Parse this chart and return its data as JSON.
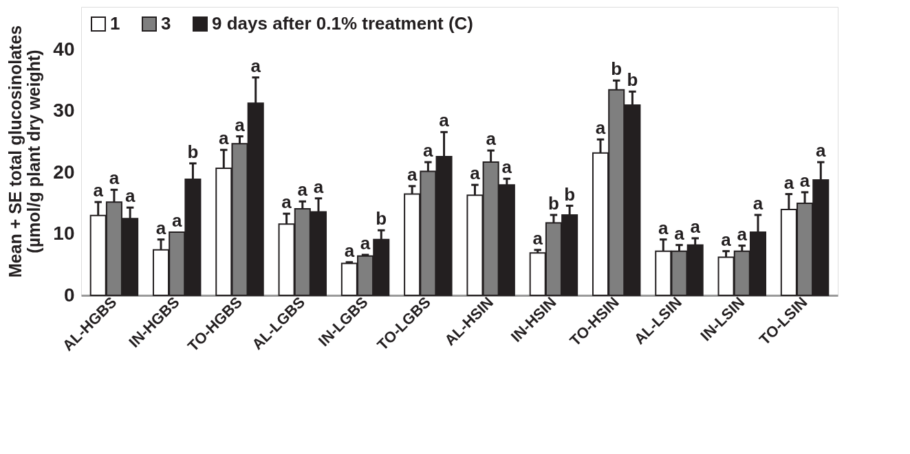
{
  "chart_data": {
    "type": "bar",
    "ylabel": "Mean + SE total glucosinolates\n(µmol/g  plant dry weight)",
    "categories": [
      "AL-HGBS",
      "IN-HGBS",
      "TO-HGBS",
      "AL-LGBS",
      "IN-LGBS",
      "TO-LGBS",
      "AL-HSIN",
      "IN-HSIN",
      "TO-HSIN",
      "AL-LSIN",
      "IN-LSIN",
      "TO-LSIN"
    ],
    "series": [
      {
        "name": "1",
        "color": "#ffffff",
        "values": [
          13.0,
          7.4,
          20.7,
          11.6,
          5.2,
          16.5,
          16.3,
          6.9,
          23.2,
          7.2,
          6.2,
          14.0
        ],
        "errors": [
          [
            13.0,
            15.2
          ],
          [
            7.4,
            9.1
          ],
          [
            20.7,
            23.7
          ],
          [
            11.6,
            13.3
          ],
          [
            5.2,
            5.4
          ],
          [
            16.5,
            17.8
          ],
          [
            16.3,
            18.0
          ],
          [
            6.9,
            7.4
          ],
          [
            23.2,
            25.4
          ],
          [
            7.2,
            9.1
          ],
          [
            6.2,
            7.2
          ],
          [
            14.0,
            16.5
          ]
        ],
        "value_labels": [
          "a",
          "a",
          "a",
          "a",
          "a",
          "a",
          "a",
          "a",
          "a",
          "a",
          "a",
          "a"
        ]
      },
      {
        "name": "3",
        "color": "#7f7f7f",
        "values": [
          15.2,
          10.3,
          24.7,
          14.1,
          6.4,
          20.2,
          21.7,
          11.8,
          33.5,
          7.2,
          7.2,
          15.0
        ],
        "errors": [
          [
            15.2,
            17.2
          ],
          null,
          [
            24.7,
            25.9
          ],
          [
            14.1,
            15.3
          ],
          [
            6.4,
            6.6
          ],
          [
            20.2,
            21.7
          ],
          [
            21.7,
            23.6
          ],
          [
            11.8,
            13.1
          ],
          [
            33.5,
            35.0
          ],
          [
            7.2,
            8.2
          ],
          [
            7.2,
            8.1
          ],
          [
            15.0,
            16.8
          ]
        ],
        "value_labels": [
          "a",
          "a",
          "a",
          "a",
          "a",
          "a",
          "a",
          "b",
          "b",
          "a",
          "a",
          "a"
        ]
      },
      {
        "name": "9 days after 0.1% treatment (C)",
        "color": "#231f20",
        "values": [
          12.5,
          18.9,
          31.3,
          13.6,
          9.1,
          22.6,
          18.0,
          13.1,
          31.0,
          8.2,
          10.3,
          18.8
        ],
        "errors": [
          [
            12.5,
            14.3
          ],
          [
            18.9,
            21.5
          ],
          [
            31.3,
            35.5
          ],
          [
            13.6,
            15.8
          ],
          [
            9.1,
            10.6
          ],
          [
            22.6,
            26.6
          ],
          [
            18.0,
            19.0
          ],
          [
            13.1,
            14.6
          ],
          [
            31.0,
            33.2
          ],
          [
            8.2,
            9.3
          ],
          [
            10.3,
            13.1
          ],
          [
            18.8,
            21.7
          ]
        ],
        "value_labels": [
          "a",
          "b",
          "a",
          "a",
          "b",
          "a",
          "a",
          "b",
          "b",
          "a",
          "a",
          "a"
        ]
      }
    ],
    "ylim": [
      0,
      47
    ],
    "yticks": [
      0,
      10,
      20,
      30,
      40
    ],
    "grid": false,
    "legend": "top left"
  }
}
